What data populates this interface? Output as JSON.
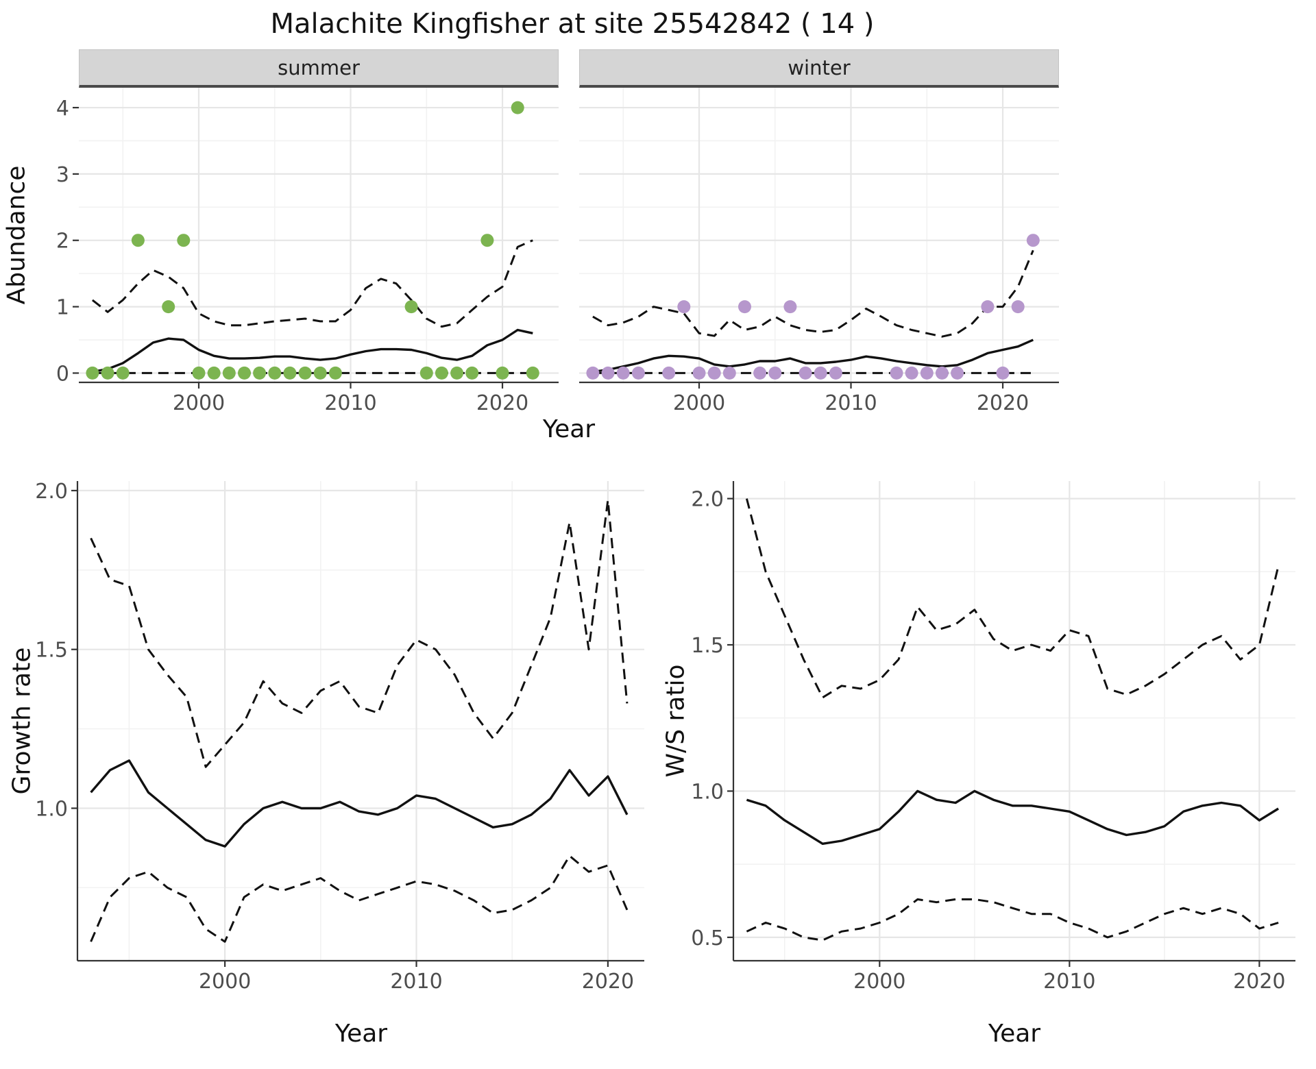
{
  "title": "Malachite Kingfisher at site 25542842 ( 14 )",
  "top_figure": {
    "ylabel": "Abundance",
    "xlabel": "Year",
    "facets": [
      {
        "label": "summer"
      },
      {
        "label": "winter"
      }
    ]
  },
  "growth_figure": {
    "ylabel": "Growth rate",
    "xlabel": "Year"
  },
  "ws_figure": {
    "ylabel": "W/S ratio",
    "xlabel": "Year"
  },
  "colors": {
    "summer_point": "#7cb450",
    "winter_point": "#b697cc",
    "line": "#111111",
    "strip_bg": "#d5d5d5",
    "grid_major": "#e6e6e6",
    "grid_minor": "#f2f2f2",
    "axis_text": "#4d4d4d",
    "axis_line": "#333333"
  },
  "chart_data": [
    {
      "id": "abundance_summer",
      "type": "line",
      "facet": "summer",
      "title": "",
      "xlabel": "Year",
      "ylabel": "Abundance",
      "xlim": [
        1992.1,
        2023.7
      ],
      "ylim": [
        -0.14,
        4.3
      ],
      "xticks": [
        2000,
        2010,
        2020
      ],
      "xtick_labels": [
        "2000",
        "2010",
        "2020"
      ],
      "yticks": [
        0,
        1,
        2,
        3,
        4
      ],
      "ytick_labels": [
        "0",
        "1",
        "2",
        "3",
        "4"
      ],
      "x": [
        1993,
        1994,
        1995,
        1996,
        1997,
        1998,
        1999,
        2000,
        2001,
        2002,
        2003,
        2004,
        2005,
        2006,
        2007,
        2008,
        2009,
        2010,
        2011,
        2012,
        2013,
        2014,
        2015,
        2016,
        2017,
        2018,
        2019,
        2020,
        2021,
        2022
      ],
      "series": [
        {
          "name": "mean",
          "style": "solid",
          "values": [
            0.02,
            0.06,
            0.15,
            0.3,
            0.46,
            0.52,
            0.5,
            0.35,
            0.26,
            0.22,
            0.22,
            0.23,
            0.25,
            0.25,
            0.22,
            0.2,
            0.22,
            0.28,
            0.33,
            0.36,
            0.36,
            0.35,
            0.3,
            0.23,
            0.2,
            0.26,
            0.42,
            0.5,
            0.65,
            0.6
          ]
        },
        {
          "name": "upper_ci",
          "style": "dashed",
          "values": [
            1.1,
            0.92,
            1.1,
            1.35,
            1.55,
            1.45,
            1.28,
            0.9,
            0.78,
            0.72,
            0.72,
            0.75,
            0.78,
            0.8,
            0.82,
            0.78,
            0.78,
            0.95,
            1.28,
            1.42,
            1.35,
            1.1,
            0.82,
            0.7,
            0.75,
            0.95,
            1.15,
            1.3,
            1.9,
            2.0
          ]
        },
        {
          "name": "lower_ci",
          "style": "dashed",
          "values": [
            0,
            0,
            0,
            0,
            0,
            0,
            0,
            0,
            0,
            0,
            0,
            0,
            0,
            0,
            0,
            0,
            0,
            0,
            0,
            0,
            0,
            0,
            0,
            0,
            0,
            0,
            0,
            0,
            0,
            0
          ]
        }
      ],
      "points": {
        "name": "observed_counts",
        "color": "#7cb450",
        "xy": [
          [
            1993,
            0
          ],
          [
            1994,
            0
          ],
          [
            1995,
            0
          ],
          [
            1996,
            2
          ],
          [
            1998,
            1
          ],
          [
            1999,
            2
          ],
          [
            2000,
            0
          ],
          [
            2001,
            0
          ],
          [
            2002,
            0
          ],
          [
            2003,
            0
          ],
          [
            2004,
            0
          ],
          [
            2005,
            0
          ],
          [
            2006,
            0
          ],
          [
            2007,
            0
          ],
          [
            2008,
            0
          ],
          [
            2009,
            0
          ],
          [
            2014,
            1
          ],
          [
            2015,
            0
          ],
          [
            2016,
            0
          ],
          [
            2017,
            0
          ],
          [
            2018,
            0
          ],
          [
            2019,
            2
          ],
          [
            2020,
            0
          ],
          [
            2021,
            4
          ],
          [
            2022,
            0
          ]
        ]
      }
    },
    {
      "id": "abundance_winter",
      "type": "line",
      "facet": "winter",
      "title": "",
      "xlabel": "Year",
      "ylabel": "Abundance",
      "xlim": [
        1992.1,
        2023.7
      ],
      "ylim": [
        -0.14,
        4.3
      ],
      "xticks": [
        2000,
        2010,
        2020
      ],
      "xtick_labels": [
        "2000",
        "2010",
        "2020"
      ],
      "yticks": [
        0,
        1,
        2,
        3,
        4
      ],
      "ytick_labels": [
        "0",
        "1",
        "2",
        "3",
        "4"
      ],
      "x": [
        1993,
        1994,
        1995,
        1996,
        1997,
        1998,
        1999,
        2000,
        2001,
        2002,
        2003,
        2004,
        2005,
        2006,
        2007,
        2008,
        2009,
        2010,
        2011,
        2012,
        2013,
        2014,
        2015,
        2016,
        2017,
        2018,
        2019,
        2020,
        2021,
        2022
      ],
      "series": [
        {
          "name": "mean",
          "style": "solid",
          "values": [
            0.02,
            0.05,
            0.1,
            0.15,
            0.22,
            0.26,
            0.25,
            0.22,
            0.13,
            0.1,
            0.13,
            0.18,
            0.18,
            0.22,
            0.15,
            0.15,
            0.17,
            0.2,
            0.25,
            0.22,
            0.18,
            0.15,
            0.12,
            0.1,
            0.12,
            0.2,
            0.3,
            0.35,
            0.4,
            0.5
          ]
        },
        {
          "name": "upper_ci",
          "style": "dashed",
          "values": [
            0.85,
            0.72,
            0.76,
            0.85,
            1.0,
            0.95,
            0.9,
            0.6,
            0.56,
            0.8,
            0.65,
            0.7,
            0.85,
            0.72,
            0.65,
            0.62,
            0.65,
            0.8,
            0.97,
            0.85,
            0.72,
            0.65,
            0.6,
            0.55,
            0.6,
            0.75,
            1.0,
            1.0,
            1.3,
            1.85
          ]
        },
        {
          "name": "lower_ci",
          "style": "dashed",
          "values": [
            0,
            0,
            0,
            0,
            0,
            0,
            0,
            0,
            0,
            0,
            0,
            0,
            0,
            0,
            0,
            0,
            0,
            0,
            0,
            0,
            0,
            0,
            0,
            0,
            0,
            0,
            0,
            0,
            0,
            0
          ]
        }
      ],
      "points": {
        "name": "observed_counts",
        "color": "#b697cc",
        "xy": [
          [
            1993,
            0
          ],
          [
            1994,
            0
          ],
          [
            1995,
            0
          ],
          [
            1996,
            0
          ],
          [
            1998,
            0
          ],
          [
            1999,
            1
          ],
          [
            2000,
            0
          ],
          [
            2001,
            0
          ],
          [
            2002,
            0
          ],
          [
            2003,
            1
          ],
          [
            2004,
            0
          ],
          [
            2005,
            0
          ],
          [
            2006,
            1
          ],
          [
            2007,
            0
          ],
          [
            2008,
            0
          ],
          [
            2009,
            0
          ],
          [
            2013,
            0
          ],
          [
            2014,
            0
          ],
          [
            2015,
            0
          ],
          [
            2016,
            0
          ],
          [
            2017,
            0
          ],
          [
            2019,
            1
          ],
          [
            2020,
            0
          ],
          [
            2021,
            1
          ],
          [
            2022,
            2
          ]
        ]
      }
    },
    {
      "id": "growth_rate",
      "type": "line",
      "title": "",
      "xlabel": "Year",
      "ylabel": "Growth rate",
      "xlim": [
        1992.3,
        2021.9
      ],
      "ylim": [
        0.52,
        2.03
      ],
      "xticks": [
        2000,
        2010,
        2020
      ],
      "xtick_labels": [
        "2000",
        "2010",
        "2020"
      ],
      "yticks": [
        1.0,
        1.5,
        2.0
      ],
      "ytick_labels": [
        "1.0",
        "1.5",
        "2.0"
      ],
      "x": [
        1993,
        1994,
        1995,
        1996,
        1997,
        1998,
        1999,
        2000,
        2001,
        2002,
        2003,
        2004,
        2005,
        2006,
        2007,
        2008,
        2009,
        2010,
        2011,
        2012,
        2013,
        2014,
        2015,
        2016,
        2017,
        2018,
        2019,
        2020,
        2021
      ],
      "series": [
        {
          "name": "mean",
          "style": "solid",
          "values": [
            1.05,
            1.12,
            1.15,
            1.05,
            1.0,
            0.95,
            0.9,
            0.88,
            0.95,
            1.0,
            1.02,
            1.0,
            1.0,
            1.02,
            0.99,
            0.98,
            1.0,
            1.04,
            1.03,
            1.0,
            0.97,
            0.94,
            0.95,
            0.98,
            1.03,
            1.12,
            1.04,
            1.1,
            0.98
          ]
        },
        {
          "name": "upper_ci",
          "style": "dashed",
          "values": [
            1.85,
            1.72,
            1.7,
            1.5,
            1.42,
            1.35,
            1.13,
            1.2,
            1.27,
            1.4,
            1.33,
            1.3,
            1.37,
            1.4,
            1.32,
            1.3,
            1.45,
            1.53,
            1.5,
            1.42,
            1.3,
            1.22,
            1.3,
            1.45,
            1.6,
            1.9,
            1.5,
            1.97,
            1.33
          ]
        },
        {
          "name": "lower_ci",
          "style": "dashed",
          "values": [
            0.58,
            0.72,
            0.78,
            0.8,
            0.75,
            0.72,
            0.62,
            0.58,
            0.72,
            0.76,
            0.74,
            0.76,
            0.78,
            0.74,
            0.71,
            0.73,
            0.75,
            0.77,
            0.76,
            0.74,
            0.71,
            0.67,
            0.68,
            0.71,
            0.75,
            0.85,
            0.8,
            0.82,
            0.68
          ]
        }
      ]
    },
    {
      "id": "ws_ratio",
      "type": "line",
      "title": "",
      "xlabel": "Year",
      "ylabel": "W/S ratio",
      "xlim": [
        1992.3,
        2021.9
      ],
      "ylim": [
        0.42,
        2.06
      ],
      "xticks": [
        2000,
        2010,
        2020
      ],
      "xtick_labels": [
        "2000",
        "2010",
        "2020"
      ],
      "yticks": [
        0.5,
        1.0,
        1.5,
        2.0
      ],
      "ytick_labels": [
        "0.5",
        "1.0",
        "1.5",
        "2.0"
      ],
      "x": [
        1993,
        1994,
        1995,
        1996,
        1997,
        1998,
        1999,
        2000,
        2001,
        2002,
        2003,
        2004,
        2005,
        2006,
        2007,
        2008,
        2009,
        2010,
        2011,
        2012,
        2013,
        2014,
        2015,
        2016,
        2017,
        2018,
        2019,
        2020,
        2021
      ],
      "series": [
        {
          "name": "mean",
          "style": "solid",
          "values": [
            0.97,
            0.95,
            0.9,
            0.86,
            0.82,
            0.83,
            0.85,
            0.87,
            0.93,
            1.0,
            0.97,
            0.96,
            1.0,
            0.97,
            0.95,
            0.95,
            0.94,
            0.93,
            0.9,
            0.87,
            0.85,
            0.86,
            0.88,
            0.93,
            0.95,
            0.96,
            0.95,
            0.9,
            0.94
          ]
        },
        {
          "name": "upper_ci",
          "style": "dashed",
          "values": [
            2.0,
            1.75,
            1.6,
            1.45,
            1.32,
            1.36,
            1.35,
            1.38,
            1.45,
            1.63,
            1.55,
            1.57,
            1.62,
            1.52,
            1.48,
            1.5,
            1.48,
            1.55,
            1.53,
            1.35,
            1.33,
            1.36,
            1.4,
            1.45,
            1.5,
            1.53,
            1.45,
            1.5,
            1.77
          ]
        },
        {
          "name": "lower_ci",
          "style": "dashed",
          "values": [
            0.52,
            0.55,
            0.53,
            0.5,
            0.49,
            0.52,
            0.53,
            0.55,
            0.58,
            0.63,
            0.62,
            0.63,
            0.63,
            0.62,
            0.6,
            0.58,
            0.58,
            0.55,
            0.53,
            0.5,
            0.52,
            0.55,
            0.58,
            0.6,
            0.58,
            0.6,
            0.58,
            0.53,
            0.55
          ]
        }
      ]
    }
  ]
}
